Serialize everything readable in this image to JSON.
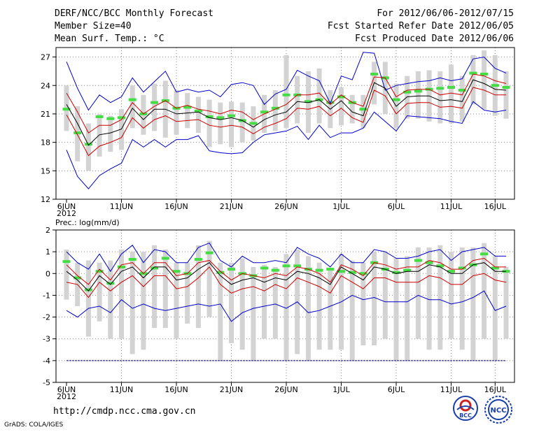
{
  "header": {
    "title": "DERF/NCC/BCC Monthly Forecast",
    "member_size": "Member Size=40",
    "variable": "Mean Surf. Temp.: °C",
    "period": "For 2012/06/06-2012/07/15",
    "start_date": "Fcst Started Refer Date 2012/06/05",
    "produced_date": "Fcst Produced Date 2012/06/06"
  },
  "footer": {
    "url": "http://cmdp.ncc.cma.gov.cn",
    "grads": "GrADS: COLA/IGES",
    "logo1": "BCC",
    "logo2": "NCC"
  },
  "colors": {
    "max": "#0000cc",
    "p90": "#cc0000",
    "p10": "#cc0000",
    "mean": "#000000",
    "box": "#d3d3d3",
    "clim": "#44dd44",
    "min": "#0000aa"
  },
  "chart_data": [
    {
      "type": "line",
      "title": "Mean Surf. Temp.: °C",
      "xlabel": "",
      "ylabel": "°C",
      "ylim": [
        12,
        28
      ],
      "yticks": [
        12,
        15,
        18,
        21,
        24,
        27
      ],
      "xticks": [
        {
          "day": 0,
          "label": "6JUN",
          "sub": "2012"
        },
        {
          "day": 5,
          "label": "11JUN"
        },
        {
          "day": 10,
          "label": "16JUN"
        },
        {
          "day": 15,
          "label": "21JUN"
        },
        {
          "day": 20,
          "label": "26JUN"
        },
        {
          "day": 25,
          "label": "1JUL"
        },
        {
          "day": 30,
          "label": "6JUL"
        },
        {
          "day": 35,
          "label": "11JUL"
        },
        {
          "day": 39,
          "label": "16JUL"
        }
      ],
      "series": [
        {
          "name": "max",
          "values": [
            26.5,
            23.7,
            21.4,
            23.0,
            22.2,
            22.8,
            24.8,
            23.3,
            24.4,
            25.5,
            23.3,
            23.6,
            23.3,
            23.5,
            22.8,
            24.1,
            24.3,
            24.0,
            22.0,
            23.1,
            23.6,
            25.6,
            25.0,
            24.5,
            22.1,
            25.0,
            24.6,
            27.5,
            27.4,
            23.5,
            24.0,
            24.2,
            24.4,
            24.5,
            24.8,
            24.5,
            24.7,
            26.8,
            27.0,
            25.8,
            25.3
          ]
        },
        {
          "name": "p90",
          "values": [
            23.2,
            21.2,
            19.0,
            19.8,
            19.8,
            20.4,
            22.2,
            21.0,
            21.8,
            22.4,
            21.6,
            21.9,
            21.5,
            21.3,
            21.0,
            21.4,
            21.2,
            20.4,
            21.0,
            21.5,
            22.0,
            23.0,
            23.0,
            23.2,
            22.0,
            23.0,
            22.2,
            21.8,
            24.9,
            24.8,
            22.8,
            23.5,
            23.6,
            23.6,
            23.0,
            23.2,
            23.0,
            25.2,
            25.0,
            24.5,
            24.2
          ]
        },
        {
          "name": "mean",
          "values": [
            22.0,
            20.0,
            17.7,
            18.8,
            19.0,
            19.4,
            21.6,
            20.4,
            21.5,
            21.5,
            21.0,
            21.1,
            21.2,
            20.6,
            20.4,
            20.6,
            20.3,
            19.6,
            20.4,
            20.9,
            21.2,
            22.3,
            22.2,
            22.5,
            21.5,
            22.4,
            21.2,
            20.8,
            24.3,
            23.7,
            21.8,
            22.8,
            22.9,
            22.9,
            22.4,
            22.5,
            22.3,
            24.6,
            24.2,
            23.6,
            23.5
          ]
        },
        {
          "name": "p10",
          "values": [
            20.9,
            18.8,
            16.6,
            17.6,
            18.0,
            18.5,
            20.6,
            19.5,
            20.4,
            20.8,
            20.2,
            20.3,
            20.4,
            19.8,
            19.6,
            19.8,
            19.6,
            18.9,
            19.6,
            20.0,
            20.5,
            21.6,
            21.5,
            21.8,
            20.8,
            21.6,
            20.6,
            20.1,
            23.5,
            22.9,
            21.0,
            22.1,
            22.2,
            22.2,
            21.7,
            21.8,
            21.6,
            23.8,
            23.5,
            23.0,
            23.0
          ]
        },
        {
          "name": "min",
          "values": [
            17.2,
            14.4,
            13.1,
            14.5,
            15.2,
            15.8,
            18.3,
            17.5,
            18.3,
            17.5,
            18.3,
            18.3,
            18.7,
            17.1,
            16.9,
            16.8,
            16.9,
            18.0,
            18.8,
            19.0,
            19.2,
            19.7,
            18.3,
            19.8,
            18.5,
            19.0,
            19.0,
            19.5,
            21.2,
            20.2,
            19.2,
            20.8,
            20.7,
            20.6,
            20.5,
            20.2,
            20.0,
            22.3,
            21.4,
            21.2,
            21.4
          ]
        }
      ],
      "boxes": [
        {
          "low": 19.2,
          "high": 24.0
        },
        {
          "low": 16.0,
          "high": 21.8
        },
        {
          "low": 15.0,
          "high": 20.0
        },
        {
          "low": 16.5,
          "high": 21.0
        },
        {
          "low": 17.0,
          "high": 20.8
        },
        {
          "low": 17.2,
          "high": 21.5
        },
        {
          "low": 19.5,
          "high": 24.0
        },
        {
          "low": 18.8,
          "high": 23.0
        },
        {
          "low": 19.2,
          "high": 24.2
        },
        {
          "low": 18.5,
          "high": 24.5
        },
        {
          "low": 18.8,
          "high": 23.5
        },
        {
          "low": 19.5,
          "high": 23.2
        },
        {
          "low": 19.0,
          "high": 22.8
        },
        {
          "low": 17.5,
          "high": 22.5
        },
        {
          "low": 17.8,
          "high": 22.2
        },
        {
          "low": 17.5,
          "high": 22.3
        },
        {
          "low": 18.0,
          "high": 22.2
        },
        {
          "low": 18.2,
          "high": 21.8
        },
        {
          "low": 19.0,
          "high": 23.0
        },
        {
          "low": 19.2,
          "high": 23.5
        },
        {
          "low": 19.5,
          "high": 27.2
        },
        {
          "low": 20.0,
          "high": 25.0
        },
        {
          "low": 19.0,
          "high": 25.5
        },
        {
          "low": 20.0,
          "high": 25.8
        },
        {
          "low": 19.5,
          "high": 23.5
        },
        {
          "low": 19.8,
          "high": 23.8
        },
        {
          "low": 20.0,
          "high": 23.0
        },
        {
          "low": 19.5,
          "high": 23.0
        },
        {
          "low": 22.0,
          "high": 26.5
        },
        {
          "low": 21.0,
          "high": 26.5
        },
        {
          "low": 19.5,
          "high": 24.2
        },
        {
          "low": 20.5,
          "high": 25.0
        },
        {
          "low": 20.5,
          "high": 25.5
        },
        {
          "low": 20.2,
          "high": 25.6
        },
        {
          "low": 20.0,
          "high": 25.5
        },
        {
          "low": 20.0,
          "high": 26.2
        },
        {
          "low": 20.2,
          "high": 25.0
        },
        {
          "low": 22.0,
          "high": 27.2
        },
        {
          "low": 21.5,
          "high": 27.7
        },
        {
          "low": 20.8,
          "high": 27.2
        },
        {
          "low": 20.5,
          "high": 25.5
        }
      ],
      "climatology": [
        21.5,
        19.0,
        17.8,
        20.7,
        20.5,
        20.6,
        22.5,
        21.0,
        22.2,
        22.4,
        21.6,
        21.7,
        21.3,
        20.7,
        20.6,
        20.8,
        20.3,
        20.0,
        21.2,
        21.6,
        23.0,
        23.0,
        22.3,
        22.5,
        22.2,
        22.8,
        22.2,
        21.5,
        25.2,
        24.8,
        22.5,
        23.3,
        23.4,
        23.6,
        23.7,
        23.8,
        23.5,
        25.3,
        25.2,
        24.0,
        23.8
      ]
    },
    {
      "type": "line",
      "title": "Prec.: log(mm/d)",
      "xlabel": "",
      "ylabel": "log(mm/d)",
      "ylim": [
        -5,
        2
      ],
      "yticks": [
        -5,
        -4,
        -3,
        -2,
        -1,
        0,
        1,
        2
      ],
      "xticks": [
        {
          "day": 0,
          "label": "6JUN",
          "sub": "2012"
        },
        {
          "day": 5,
          "label": "11JUN"
        },
        {
          "day": 10,
          "label": "16JUN"
        },
        {
          "day": 15,
          "label": "21JUN"
        },
        {
          "day": 20,
          "label": "26JUN"
        },
        {
          "day": 25,
          "label": "1JUL"
        },
        {
          "day": 30,
          "label": "6JUL"
        },
        {
          "day": 35,
          "label": "11JUL"
        },
        {
          "day": 39,
          "label": "16JUL"
        }
      ],
      "series": [
        {
          "name": "max",
          "values": [
            1.0,
            0.5,
            0.2,
            0.9,
            0.1,
            0.9,
            1.3,
            0.5,
            1.1,
            1.0,
            0.5,
            0.5,
            1.2,
            1.4,
            0.6,
            0.3,
            0.8,
            0.5,
            0.5,
            0.6,
            0.5,
            1.2,
            0.9,
            0.7,
            0.3,
            0.9,
            0.5,
            0.5,
            1.1,
            1.0,
            0.7,
            0.7,
            0.8,
            1.0,
            1.1,
            0.6,
            1.0,
            1.1,
            1.2,
            0.8,
            0.8
          ]
        },
        {
          "name": "p90",
          "values": [
            0.4,
            -0.1,
            -0.5,
            0.2,
            -0.3,
            0.4,
            0.5,
            0.0,
            0.5,
            0.5,
            -0.1,
            0.0,
            0.5,
            0.6,
            0.1,
            -0.3,
            0.0,
            -0.1,
            -0.2,
            0.0,
            -0.1,
            0.3,
            0.2,
            0.0,
            -0.4,
            0.4,
            0.2,
            -0.1,
            0.5,
            0.4,
            0.2,
            0.3,
            0.3,
            0.6,
            0.5,
            0.2,
            0.2,
            0.6,
            0.7,
            0.3,
            0.3
          ]
        },
        {
          "name": "mean",
          "values": [
            0.1,
            -0.3,
            -0.8,
            -0.1,
            -0.5,
            0.1,
            0.3,
            -0.2,
            0.3,
            0.3,
            -0.3,
            -0.2,
            0.2,
            0.5,
            -0.1,
            -0.5,
            -0.3,
            -0.2,
            -0.4,
            -0.2,
            -0.3,
            0.1,
            0.0,
            -0.2,
            -0.5,
            0.3,
            0.0,
            -0.3,
            0.3,
            0.2,
            0.0,
            0.1,
            0.1,
            0.4,
            0.3,
            0.0,
            0.0,
            0.4,
            0.5,
            0.1,
            0.1
          ]
        },
        {
          "name": "p10",
          "values": [
            -0.4,
            -0.5,
            -1.1,
            -0.4,
            -0.8,
            -0.4,
            -0.1,
            -0.6,
            -0.1,
            -0.1,
            -0.7,
            -0.6,
            -0.2,
            0.3,
            -0.5,
            -0.9,
            -0.7,
            -0.6,
            -0.8,
            -0.5,
            -0.7,
            -0.2,
            -0.4,
            -0.6,
            -0.9,
            -0.1,
            -0.4,
            -0.7,
            -0.2,
            -0.2,
            -0.4,
            -0.4,
            -0.4,
            -0.1,
            -0.2,
            -0.5,
            -0.5,
            -0.1,
            0.0,
            -0.3,
            -0.4
          ]
        },
        {
          "name": "min",
          "values": [
            -1.7,
            -2.0,
            -1.6,
            -1.5,
            -1.8,
            -1.2,
            -1.6,
            -1.4,
            -1.6,
            -1.7,
            -1.6,
            -1.5,
            -1.4,
            -1.5,
            -1.4,
            -2.2,
            -1.8,
            -1.6,
            -1.5,
            -1.4,
            -1.6,
            -1.3,
            -1.8,
            -1.7,
            -1.5,
            -1.3,
            -1.0,
            -1.2,
            -1.1,
            -1.3,
            -1.3,
            -1.3,
            -1.0,
            -1.2,
            -1.2,
            -1.4,
            -1.3,
            -1.1,
            -0.8,
            -1.7,
            -1.5
          ]
        }
      ],
      "boxes": [
        {
          "low": -1.2,
          "high": 1.1
        },
        {
          "low": -1.5,
          "high": 0.5
        },
        {
          "low": -2.9,
          "high": 0.6
        },
        {
          "low": -2.2,
          "high": 0.5
        },
        {
          "low": -3.0,
          "high": 0.6
        },
        {
          "low": -3.0,
          "high": 1.1
        },
        {
          "low": -3.7,
          "high": 1.0
        },
        {
          "low": -3.5,
          "high": 1.0
        },
        {
          "low": -2.5,
          "high": 1.3
        },
        {
          "low": -2.5,
          "high": 1.1
        },
        {
          "low": -3.0,
          "high": 0.5
        },
        {
          "low": -2.3,
          "high": 0.5
        },
        {
          "low": -2.5,
          "high": 1.3
        },
        {
          "low": -2.0,
          "high": 1.5
        },
        {
          "low": -4.0,
          "high": 0.5
        },
        {
          "low": -3.2,
          "high": 0.5
        },
        {
          "low": -3.5,
          "high": 0.7
        },
        {
          "low": -4.0,
          "high": 0.3
        },
        {
          "low": -3.0,
          "high": 0.4
        },
        {
          "low": -3.0,
          "high": 0.3
        },
        {
          "low": -4.0,
          "high": 0.9
        },
        {
          "low": -3.7,
          "high": 1.1
        },
        {
          "low": -4.0,
          "high": 0.8
        },
        {
          "low": -3.5,
          "high": 0.5
        },
        {
          "low": -3.5,
          "high": 0.2
        },
        {
          "low": -3.5,
          "high": 0.9
        },
        {
          "low": -4.0,
          "high": 0.6
        },
        {
          "low": -3.3,
          "high": 0.5
        },
        {
          "low": -3.3,
          "high": 1.0
        },
        {
          "low": -3.0,
          "high": 1.0
        },
        {
          "low": -4.0,
          "high": 0.7
        },
        {
          "low": -4.0,
          "high": 0.8
        },
        {
          "low": -3.0,
          "high": 1.2
        },
        {
          "low": -3.5,
          "high": 1.2
        },
        {
          "low": -3.5,
          "high": 1.3
        },
        {
          "low": -3.0,
          "high": 1.0
        },
        {
          "low": -3.5,
          "high": 1.2
        },
        {
          "low": -4.0,
          "high": 1.2
        },
        {
          "low": -3.0,
          "high": 1.4
        },
        {
          "low": -4.0,
          "high": 0.8
        },
        {
          "low": -3.0,
          "high": 0.3
        }
      ],
      "climatology": [
        0.55,
        -0.2,
        -0.75,
        0.1,
        -0.45,
        0.3,
        0.65,
        0.0,
        0.25,
        0.7,
        0.1,
        0.0,
        0.65,
        0.95,
        0.05,
        0.2,
        0.0,
        -0.1,
        0.25,
        0.15,
        0.35,
        0.35,
        0.2,
        0.15,
        0.2,
        0.1,
        0.05,
        0.0,
        0.5,
        0.2,
        0.05,
        0.15,
        0.6,
        0.5,
        0.35,
        0.1,
        0.25,
        0.4,
        0.9,
        0.25,
        0.1
      ],
      "reference_line": -4
    }
  ]
}
